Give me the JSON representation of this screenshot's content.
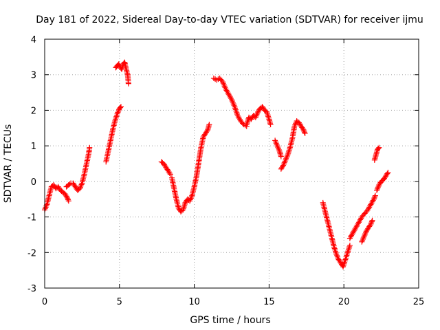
{
  "chart_data": {
    "type": "scatter",
    "title": "Day 181 of 2022, Sidereal Day-to-day VTEC variation (SDTVAR) for receiver ijmu",
    "xlabel": "GPS time / hours",
    "ylabel": "SDTVAR / TECUs",
    "xlim": [
      0,
      25
    ],
    "ylim": [
      -3,
      4
    ],
    "xticks": [
      "0",
      "5",
      "10",
      "15",
      "20",
      "25"
    ],
    "yticks": [
      "-3",
      "-2",
      "-1",
      "0",
      "1",
      "2",
      "3",
      "4"
    ],
    "grid": true,
    "marker": "+",
    "colors": {
      "series": "#ff0000",
      "grid": "#a0a0a0",
      "axis": "#000000"
    },
    "segments": [
      {
        "x": [
          0.0,
          0.15,
          0.3,
          0.45,
          0.6,
          0.75,
          0.9,
          1.05,
          1.2,
          1.35,
          1.5,
          1.6
        ],
        "y": [
          -0.8,
          -0.65,
          -0.4,
          -0.15,
          -0.1,
          -0.2,
          -0.15,
          -0.25,
          -0.3,
          -0.35,
          -0.45,
          -0.55
        ]
      },
      {
        "x": [
          1.45,
          1.6,
          1.75,
          1.9,
          2.05,
          2.2,
          2.35,
          2.5,
          2.65,
          2.8,
          2.95,
          3.0
        ],
        "y": [
          -0.15,
          -0.1,
          -0.05,
          -0.05,
          -0.15,
          -0.25,
          -0.2,
          -0.05,
          0.2,
          0.5,
          0.8,
          0.95
        ]
      },
      {
        "x": [
          4.1,
          4.25,
          4.4,
          4.55,
          4.7,
          4.85,
          5.0,
          5.1
        ],
        "y": [
          0.55,
          0.85,
          1.15,
          1.45,
          1.7,
          1.9,
          2.05,
          2.1
        ]
      },
      {
        "x": [
          4.75,
          4.85,
          4.95,
          5.05,
          5.15,
          5.25,
          5.35,
          5.45,
          5.55,
          5.6
        ],
        "y": [
          3.2,
          3.25,
          3.3,
          3.22,
          3.15,
          3.3,
          3.35,
          3.15,
          3.0,
          2.75
        ]
      },
      {
        "x": [
          7.8,
          7.95,
          8.1,
          8.25,
          8.4
        ],
        "y": [
          0.55,
          0.5,
          0.4,
          0.3,
          0.2
        ]
      },
      {
        "x": [
          8.5,
          8.65,
          8.8,
          8.95,
          9.1,
          9.25,
          9.4,
          9.55,
          9.7,
          9.85
        ],
        "y": [
          0.1,
          -0.2,
          -0.5,
          -0.75,
          -0.85,
          -0.8,
          -0.6,
          -0.5,
          -0.55,
          -0.4
        ]
      },
      {
        "x": [
          9.85,
          10.0,
          10.15,
          10.3,
          10.45,
          10.6,
          10.75,
          10.9,
          11.0
        ],
        "y": [
          -0.4,
          -0.15,
          0.15,
          0.55,
          0.95,
          1.25,
          1.35,
          1.45,
          1.6
        ]
      },
      {
        "x": [
          11.3,
          11.5,
          11.7,
          11.9,
          12.1,
          12.3,
          12.5,
          12.7,
          12.9,
          13.1,
          13.3,
          13.5
        ],
        "y": [
          2.9,
          2.85,
          2.9,
          2.8,
          2.6,
          2.45,
          2.3,
          2.1,
          1.85,
          1.7,
          1.6,
          1.55
        ]
      },
      {
        "x": [
          13.5,
          13.65,
          13.8,
          13.95,
          14.1,
          14.25,
          14.4,
          14.55,
          14.7,
          14.85,
          15.0,
          15.1
        ],
        "y": [
          1.6,
          1.8,
          1.75,
          1.85,
          1.8,
          1.95,
          2.05,
          2.1,
          2.0,
          1.95,
          1.75,
          1.6
        ]
      },
      {
        "x": [
          15.4,
          15.55,
          15.7,
          15.8
        ],
        "y": [
          1.15,
          1.0,
          0.85,
          0.7
        ]
      },
      {
        "x": [
          15.8,
          15.95,
          16.1,
          16.25,
          16.4,
          16.55,
          16.7,
          16.85,
          17.0,
          17.15,
          17.3,
          17.4
        ],
        "y": [
          0.35,
          0.45,
          0.6,
          0.75,
          0.95,
          1.2,
          1.55,
          1.7,
          1.65,
          1.55,
          1.45,
          1.35
        ]
      },
      {
        "x": [
          18.6,
          18.75,
          18.9,
          19.05,
          19.2,
          19.35,
          19.5,
          19.65,
          19.8,
          19.95,
          20.1,
          20.25,
          20.4
        ],
        "y": [
          -0.6,
          -0.85,
          -1.1,
          -1.35,
          -1.6,
          -1.85,
          -2.05,
          -2.2,
          -2.3,
          -2.4,
          -2.2,
          -2.0,
          -1.8
        ]
      },
      {
        "x": [
          20.4,
          20.6,
          20.8,
          21.0,
          21.2,
          21.4,
          21.6,
          21.8,
          22.0,
          22.1
        ],
        "y": [
          -1.6,
          -1.45,
          -1.3,
          -1.15,
          -1.0,
          -0.9,
          -0.8,
          -0.65,
          -0.5,
          -0.4
        ]
      },
      {
        "x": [
          21.2,
          21.35,
          21.5,
          21.65,
          21.8,
          21.9
        ],
        "y": [
          -1.7,
          -1.55,
          -1.4,
          -1.3,
          -1.2,
          -1.1
        ]
      },
      {
        "x": [
          22.05,
          22.15,
          22.25,
          22.35
        ],
        "y": [
          0.6,
          0.75,
          0.9,
          0.95
        ]
      },
      {
        "x": [
          22.2,
          22.35,
          22.5,
          22.65,
          22.8,
          22.95
        ],
        "y": [
          -0.25,
          -0.1,
          0.0,
          0.05,
          0.15,
          0.25
        ]
      }
    ]
  }
}
